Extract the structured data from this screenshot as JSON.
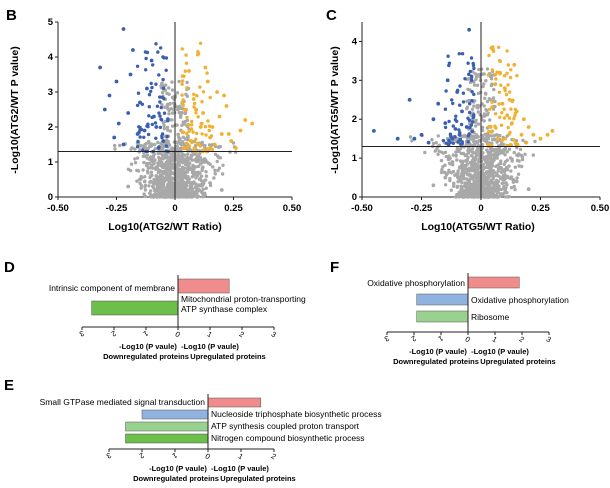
{
  "panels": {
    "B": {
      "label": "B",
      "xlabel": "Log10(ATG2/WT Ratio)",
      "ylabel": "-Log10(ATG2/WT P value)",
      "xticks": [
        "-0.50",
        "-0.25",
        "0",
        "0.25",
        "0.50"
      ],
      "yticks": [
        "0",
        "1",
        "2",
        "3",
        "4",
        "5"
      ]
    },
    "C": {
      "label": "C",
      "xlabel": "Log10(ATG5/WT Ratio)",
      "ylabel": "-Log10(ATG5/WT P value)",
      "xticks": [
        "-0.50",
        "-0.25",
        "0",
        "0.25",
        "0.50"
      ],
      "yticks": [
        "0",
        "1",
        "2",
        "3",
        "4"
      ]
    },
    "D": {
      "label": "D",
      "bars": [
        {
          "label": "Intrinsic component of membrane",
          "value": 1.6,
          "direction": "up"
        },
        {
          "label": "Mitochondrial proton-transporting ATP synthase complex",
          "value": -2.7,
          "direction": "down"
        }
      ],
      "ticks": [
        "3",
        "2",
        "1",
        "0",
        "1",
        "2",
        "3"
      ],
      "neg_axis_label": "-Log10 (P vaule)",
      "pos_axis_label": "-Log10 (P vaule)",
      "down_label": "Downregulated proteins",
      "up_label": "Upregulated proteins"
    },
    "E": {
      "label": "E",
      "bars": [
        {
          "label": "Small GTPase mediated signal transduction",
          "value": 1.6,
          "direction": "up"
        },
        {
          "label": "Nucleoside triphosphate biosynthetic process",
          "value": -2.0,
          "direction": "down"
        },
        {
          "label": "ATP synthesis coupled proton transport",
          "value": -2.5,
          "direction": "down"
        },
        {
          "label": "Nitrogen compound biosynthetic process",
          "value": -2.5,
          "direction": "down"
        }
      ],
      "ticks": [
        "3",
        "2",
        "1",
        "0",
        "1",
        "2"
      ],
      "neg_axis_label": "-Log10 (P vaule)",
      "pos_axis_label": "-Log10 (P vaule)",
      "down_label": "Downregulated proteins",
      "up_label": "Upregulated proteins"
    },
    "F": {
      "label": "F",
      "bars": [
        {
          "label": "Oxidative phosphorylation",
          "value": 1.9,
          "direction": "up"
        },
        {
          "label": "Oxidative phosphorylation",
          "value": -1.9,
          "direction": "down"
        },
        {
          "label": "Ribosome",
          "value": -1.9,
          "direction": "down"
        }
      ],
      "ticks": [
        "3",
        "2",
        "1",
        "0",
        "1",
        "2",
        "3"
      ],
      "neg_axis_label": "-Log10 (P vaule)",
      "pos_axis_label": "-Log10 (P vaule)",
      "down_label": "Downregulated proteins",
      "up_label": "Upregulated proteins"
    }
  },
  "colors": {
    "up_points": "#f0b030",
    "down_points": "#3a5fb0",
    "ns_points": "#a8a8a8",
    "bar_up": "#f08c8c",
    "bar_down_green": "#6cbf4a",
    "bar_down_blue": "#8fb3de",
    "bar_down_lightgreen": "#99d18f"
  },
  "chart_data": [
    {
      "type": "scatter",
      "panel": "B",
      "title": "",
      "xlabel": "Log10(ATG2/WT Ratio)",
      "ylabel": "-Log10(ATG2/WT P value)",
      "xlim": [
        -0.5,
        0.5
      ],
      "ylim": [
        0,
        5
      ],
      "threshold_y": 1.3,
      "threshold_x": 0,
      "series": [
        {
          "name": "downregulated",
          "color": "#3a5fb0",
          "x": [
            -0.32,
            -0.22,
            -0.18,
            -0.1,
            -0.28,
            -0.25,
            -0.2,
            -0.15,
            -0.08,
            -0.05,
            -0.24,
            -0.12,
            -0.19,
            -0.3,
            -0.16,
            -0.09,
            -0.22,
            -0.13,
            -0.07,
            -0.26
          ],
          "y": [
            3.7,
            4.8,
            4.2,
            3.9,
            2.9,
            3.3,
            2.4,
            2.7,
            2.0,
            1.6,
            2.1,
            3.1,
            3.5,
            2.5,
            1.8,
            2.3,
            1.5,
            1.9,
            1.4,
            1.7
          ]
        },
        {
          "name": "upregulated",
          "color": "#f0b030",
          "x": [
            0.06,
            0.1,
            0.14,
            0.18,
            0.22,
            0.3,
            0.08,
            0.12,
            0.16,
            0.2,
            0.24,
            0.28,
            0.1,
            0.15,
            0.19,
            0.26,
            0.07,
            0.13,
            0.21,
            0.33,
            0.11,
            0.17,
            0.23,
            0.09
          ],
          "y": [
            3.6,
            4.1,
            3.3,
            3.0,
            2.6,
            2.2,
            2.8,
            2.4,
            2.0,
            1.8,
            1.6,
            1.9,
            1.5,
            1.7,
            2.3,
            1.4,
            1.6,
            3.7,
            2.9,
            2.1,
            2.0,
            1.5,
            1.8,
            2.5
          ]
        },
        {
          "name": "not significant",
          "color": "#a8a8a8",
          "x": [
            -0.05,
            -0.02,
            0.0,
            0.02,
            0.04,
            -0.08,
            0.07,
            -0.12,
            0.1,
            0.0,
            -0.03,
            0.03,
            -0.06,
            0.06,
            0.01,
            -0.01,
            0.15,
            -0.15,
            0.2,
            -0.2
          ],
          "y": [
            0.2,
            0.5,
            0.8,
            0.4,
            1.0,
            0.6,
            0.3,
            0.9,
            0.7,
            1.2,
            1.0,
            0.1,
            0.3,
            1.1,
            0.6,
            0.9,
            0.4,
            0.5,
            0.2,
            0.3
          ]
        }
      ]
    },
    {
      "type": "scatter",
      "panel": "C",
      "title": "",
      "xlabel": "Log10(ATG5/WT Ratio)",
      "ylabel": "-Log10(ATG5/WT P value)",
      "xlim": [
        -0.5,
        0.5
      ],
      "ylim": [
        0,
        4.5
      ],
      "threshold_y": 1.3,
      "threshold_x": 0,
      "series": [
        {
          "name": "downregulated",
          "color": "#3a5fb0",
          "x": [
            -0.3,
            -0.2,
            -0.1,
            -0.05,
            -0.45,
            -0.25,
            -0.15,
            -0.08,
            -0.12,
            -0.18,
            -0.22,
            -0.06,
            -0.28,
            -0.14,
            -0.09,
            -0.35
          ],
          "y": [
            2.5,
            2.0,
            2.7,
            4.3,
            1.7,
            1.6,
            1.9,
            2.2,
            1.5,
            2.4,
            1.4,
            1.8,
            1.5,
            3.0,
            1.6,
            1.5
          ]
        },
        {
          "name": "upregulated",
          "color": "#f0b030",
          "x": [
            0.05,
            0.08,
            0.1,
            0.12,
            0.15,
            0.18,
            0.2,
            0.22,
            0.25,
            0.3,
            0.06,
            0.09,
            0.13,
            0.17,
            0.07,
            0.11,
            0.14,
            0.19,
            0.28,
            0.04
          ],
          "y": [
            3.8,
            3.2,
            2.8,
            2.5,
            2.2,
            2.0,
            1.8,
            1.6,
            1.5,
            1.7,
            2.9,
            2.4,
            1.9,
            1.6,
            1.5,
            2.1,
            3.4,
            1.4,
            1.6,
            1.8
          ]
        },
        {
          "name": "not significant",
          "color": "#a8a8a8",
          "x": [
            -0.05,
            -0.02,
            0.0,
            0.02,
            0.04,
            -0.08,
            0.07,
            -0.12,
            0.1,
            0.0,
            -0.03,
            0.03,
            -0.06,
            0.06,
            0.01,
            -0.01,
            0.15,
            -0.15,
            0.2,
            -0.2
          ],
          "y": [
            0.2,
            0.5,
            0.8,
            0.4,
            1.0,
            0.6,
            0.3,
            0.9,
            0.7,
            1.2,
            1.0,
            0.1,
            0.3,
            1.1,
            0.6,
            0.9,
            0.4,
            0.5,
            0.2,
            0.3
          ]
        }
      ]
    },
    {
      "type": "bar",
      "panel": "D",
      "orientation": "horizontal",
      "categories": [
        "Intrinsic component of membrane",
        "Mitochondrial proton-transporting ATP synthase complex"
      ],
      "values": [
        1.6,
        -2.7
      ],
      "xlim": [
        -3,
        3
      ],
      "xlabel": "-Log10 (P vaule)"
    },
    {
      "type": "bar",
      "panel": "E",
      "orientation": "horizontal",
      "categories": [
        "Small GTPase mediated signal transduction",
        "Nucleoside triphosphate biosynthetic process",
        "ATP synthesis coupled proton transport",
        "Nitrogen compound biosynthetic process"
      ],
      "values": [
        1.6,
        -2.0,
        -2.5,
        -2.5
      ],
      "xlim": [
        -3,
        2
      ],
      "xlabel": "-Log10 (P vaule)"
    },
    {
      "type": "bar",
      "panel": "F",
      "orientation": "horizontal",
      "categories": [
        "Oxidative phosphorylation",
        "Oxidative phosphorylation",
        "Ribosome"
      ],
      "values": [
        1.9,
        -1.9,
        -1.9
      ],
      "xlim": [
        -3,
        3
      ],
      "xlabel": "-Log10 (P vaule)"
    }
  ]
}
